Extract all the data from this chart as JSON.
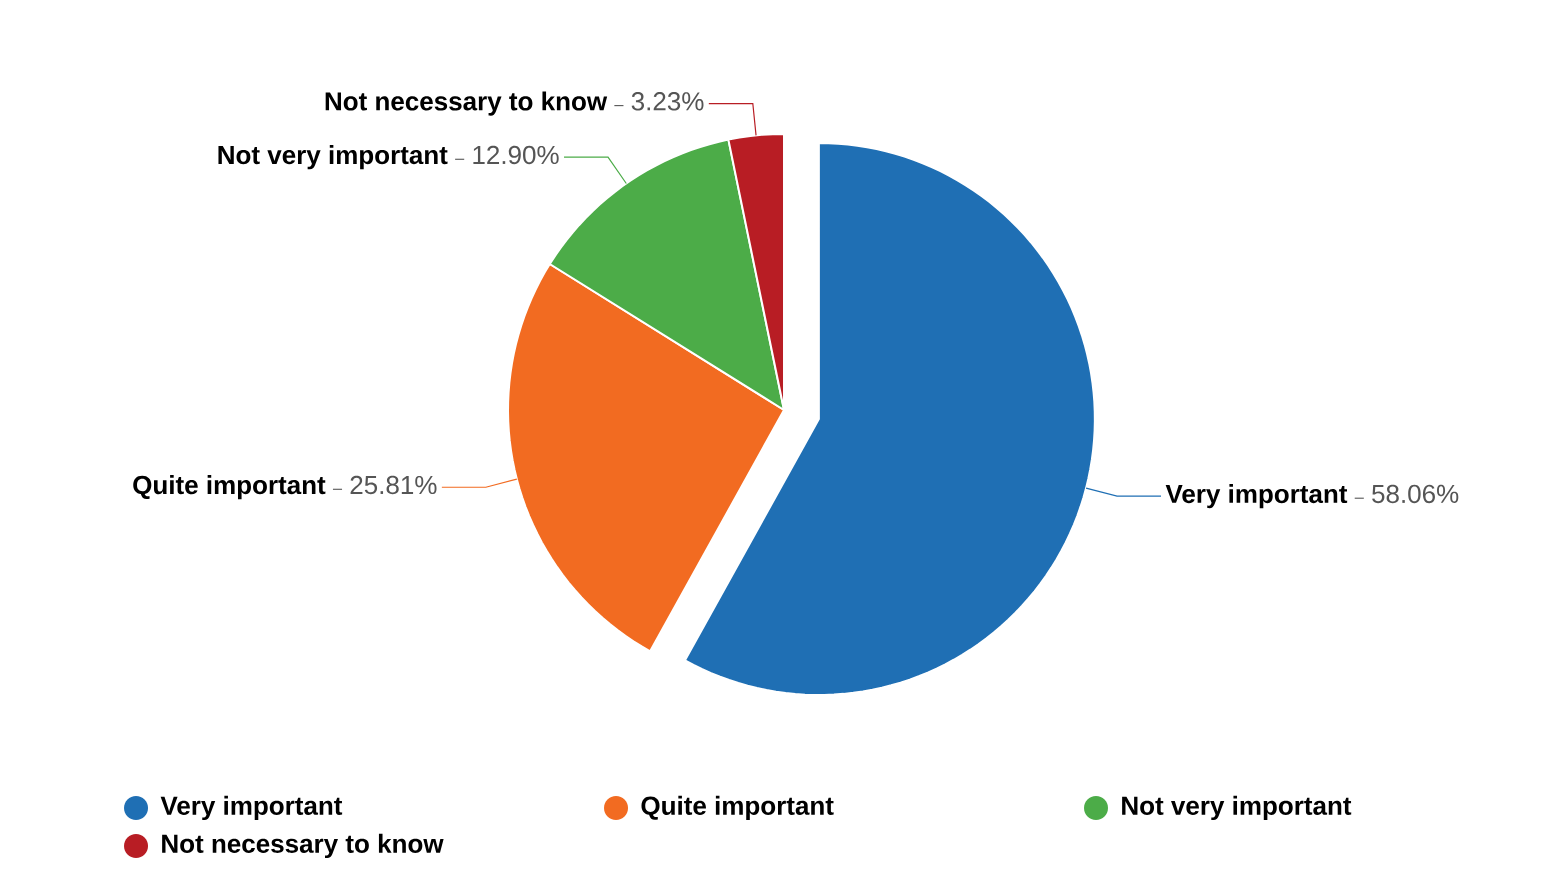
{
  "chart_data": {
    "type": "pie",
    "categories": [
      "Very important",
      "Quite important",
      "Not very important",
      "Not necessary to know"
    ],
    "values": [
      58.06,
      25.81,
      12.9,
      3.23
    ],
    "value_labels": [
      "58.06%",
      "25.81%",
      "12.90%",
      "3.23%"
    ],
    "colors": [
      "#1f6fb4",
      "#f26b21",
      "#4cac48",
      "#b81d24"
    ],
    "legend": "bottom"
  }
}
